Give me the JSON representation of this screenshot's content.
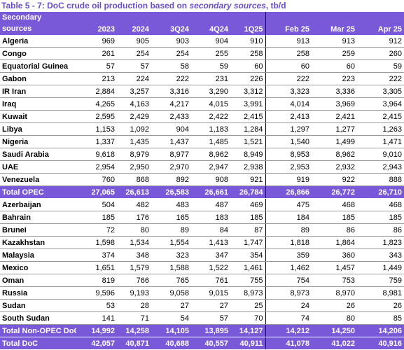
{
  "title": {
    "prefix": "Table 5 - 7: DoC crude oil production based on ",
    "emphasis": "secondary sources",
    "suffix": ", tb/d"
  },
  "header": {
    "label_line1": "Secondary",
    "label_line2": "sources",
    "columns": [
      "2023",
      "2024",
      "3Q24",
      "4Q24",
      "1Q25",
      "Feb 25",
      "Mar 25",
      "Apr 25"
    ]
  },
  "opec_rows": [
    {
      "name": "Algeria",
      "values": [
        "969",
        "905",
        "903",
        "904",
        "910",
        "913",
        "913",
        "912"
      ]
    },
    {
      "name": "Congo",
      "values": [
        "261",
        "254",
        "254",
        "255",
        "258",
        "258",
        "259",
        "260"
      ]
    },
    {
      "name": "Equatorial Guinea",
      "values": [
        "57",
        "57",
        "58",
        "59",
        "60",
        "60",
        "60",
        "59"
      ]
    },
    {
      "name": "Gabon",
      "values": [
        "213",
        "224",
        "222",
        "231",
        "226",
        "222",
        "223",
        "222"
      ]
    },
    {
      "name": "IR Iran",
      "values": [
        "2,884",
        "3,257",
        "3,316",
        "3,290",
        "3,312",
        "3,323",
        "3,336",
        "3,305"
      ]
    },
    {
      "name": "Iraq",
      "values": [
        "4,265",
        "4,163",
        "4,217",
        "4,015",
        "3,991",
        "4,014",
        "3,969",
        "3,964"
      ]
    },
    {
      "name": "Kuwait",
      "values": [
        "2,595",
        "2,429",
        "2,433",
        "2,422",
        "2,415",
        "2,413",
        "2,421",
        "2,415"
      ]
    },
    {
      "name": "Libya",
      "values": [
        "1,153",
        "1,092",
        "904",
        "1,183",
        "1,284",
        "1,297",
        "1,277",
        "1,263"
      ]
    },
    {
      "name": "Nigeria",
      "values": [
        "1,337",
        "1,435",
        "1,437",
        "1,485",
        "1,521",
        "1,540",
        "1,499",
        "1,471"
      ]
    },
    {
      "name": "Saudi Arabia",
      "values": [
        "9,618",
        "8,979",
        "8,977",
        "8,962",
        "8,949",
        "8,953",
        "8,962",
        "9,010"
      ]
    },
    {
      "name": "UAE",
      "values": [
        "2,954",
        "2,950",
        "2,970",
        "2,947",
        "2,938",
        "2,953",
        "2,932",
        "2,943"
      ]
    },
    {
      "name": "Venezuela",
      "values": [
        "760",
        "868",
        "892",
        "908",
        "921",
        "919",
        "922",
        "888"
      ]
    }
  ],
  "total_opec": {
    "name": "Total  OPEC",
    "values": [
      "27,065",
      "26,613",
      "26,583",
      "26,661",
      "26,784",
      "26,866",
      "26,772",
      "26,710"
    ]
  },
  "non_opec_rows": [
    {
      "name": "Azerbaijan",
      "values": [
        "504",
        "482",
        "483",
        "487",
        "469",
        "475",
        "468",
        "468"
      ]
    },
    {
      "name": "Bahrain",
      "values": [
        "185",
        "176",
        "165",
        "183",
        "185",
        "184",
        "185",
        "185"
      ]
    },
    {
      "name": "Brunei",
      "values": [
        "72",
        "80",
        "89",
        "84",
        "87",
        "89",
        "86",
        "86"
      ]
    },
    {
      "name": "Kazakhstan",
      "values": [
        "1,598",
        "1,534",
        "1,554",
        "1,413",
        "1,747",
        "1,818",
        "1,864",
        "1,823"
      ]
    },
    {
      "name": "Malaysia",
      "values": [
        "374",
        "348",
        "323",
        "347",
        "354",
        "359",
        "360",
        "343"
      ]
    },
    {
      "name": "Mexico",
      "values": [
        "1,651",
        "1,579",
        "1,588",
        "1,522",
        "1,461",
        "1,462",
        "1,457",
        "1,449"
      ]
    },
    {
      "name": "Oman",
      "values": [
        "819",
        "766",
        "765",
        "761",
        "755",
        "754",
        "753",
        "759"
      ]
    },
    {
      "name": "Russia",
      "values": [
        "9,596",
        "9,193",
        "9,058",
        "9,015",
        "8,973",
        "8,973",
        "8,970",
        "8,981"
      ]
    },
    {
      "name": "Sudan",
      "values": [
        "53",
        "28",
        "27",
        "27",
        "25",
        "24",
        "26",
        "26"
      ]
    },
    {
      "name": "South Sudan",
      "values": [
        "141",
        "71",
        "54",
        "57",
        "70",
        "74",
        "80",
        "85"
      ]
    }
  ],
  "total_non_opec": {
    "name": "Total Non-OPEC DoC",
    "values": [
      "14,992",
      "14,258",
      "14,105",
      "13,895",
      "14,127",
      "14,212",
      "14,250",
      "14,206"
    ]
  },
  "total_doc": {
    "name": "Total DoC",
    "values": [
      "42,057",
      "40,871",
      "40,688",
      "40,557",
      "40,911",
      "41,078",
      "41,022",
      "40,916"
    ]
  }
}
